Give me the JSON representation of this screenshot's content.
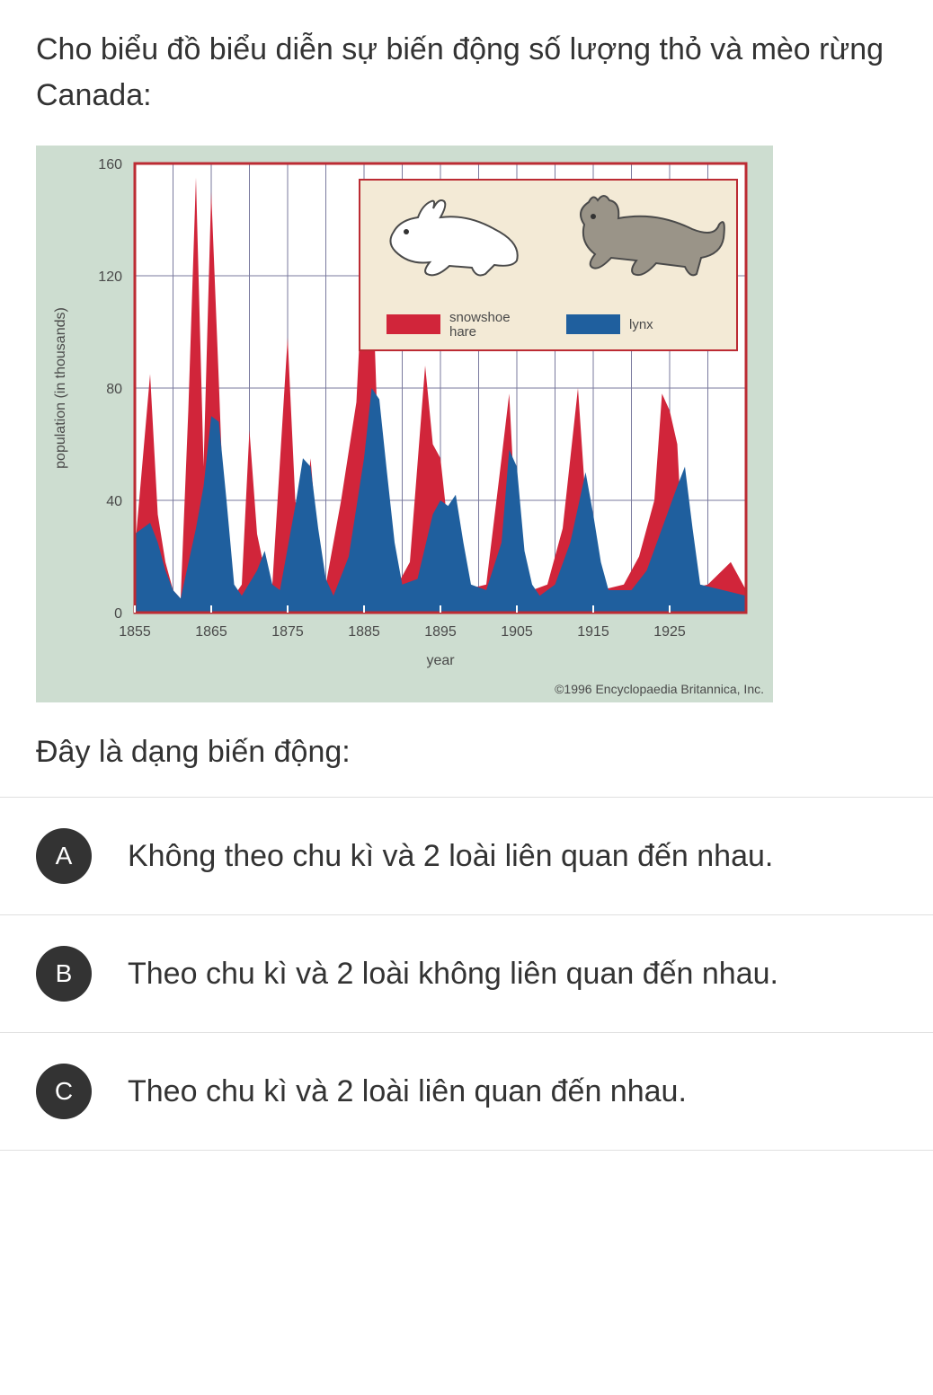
{
  "question": {
    "intro": "Cho biểu đồ biểu diễn sự biến động số lượng thỏ và mèo rừng Canada:",
    "prompt": "Đây là dạng biến động:"
  },
  "chart": {
    "type": "area",
    "background_color": "#cdddd0",
    "plot_background_color": "#ffffff",
    "plot_border_color": "#bc2b33",
    "plot_border_width": 3,
    "grid_color": "#7a7a9e",
    "grid_width": 1,
    "axis_label_color": "#4a4a4a",
    "axis_font_size": 16,
    "y_axis": {
      "label": "population (in thousands)",
      "label_fontsize": 16,
      "min": 0,
      "max": 160,
      "ticks": [
        0,
        40,
        80,
        120,
        160
      ]
    },
    "x_axis": {
      "label": "year",
      "label_fontsize": 16,
      "min": 1855,
      "max": 1935,
      "ticks": [
        1855,
        1865,
        1875,
        1885,
        1895,
        1905,
        1915,
        1925
      ]
    },
    "legend": {
      "box_fill": "#f3ead6",
      "box_stroke": "#bc2b33",
      "items": [
        {
          "label": "snowshoe hare",
          "color": "#d1253a",
          "animal": "hare"
        },
        {
          "label": "lynx",
          "color": "#1f5f9e",
          "animal": "lynx"
        }
      ]
    },
    "copyright": "©1996 Encyclopaedia Britannica, Inc.",
    "series": {
      "hare": {
        "color": "#d1253a",
        "points": [
          [
            1855,
            22
          ],
          [
            1857,
            85
          ],
          [
            1858,
            35
          ],
          [
            1859,
            18
          ],
          [
            1860,
            8
          ],
          [
            1861,
            5
          ],
          [
            1862,
            72
          ],
          [
            1863,
            155
          ],
          [
            1864,
            52
          ],
          [
            1865,
            150
          ],
          [
            1866,
            82
          ],
          [
            1867,
            10
          ],
          [
            1868,
            6
          ],
          [
            1869,
            10
          ],
          [
            1870,
            65
          ],
          [
            1871,
            28
          ],
          [
            1872,
            15
          ],
          [
            1873,
            10
          ],
          [
            1875,
            98
          ],
          [
            1876,
            40
          ],
          [
            1877,
            25
          ],
          [
            1878,
            55
          ],
          [
            1879,
            22
          ],
          [
            1880,
            10
          ],
          [
            1882,
            40
          ],
          [
            1884,
            75
          ],
          [
            1885,
            130
          ],
          [
            1886,
            128
          ],
          [
            1887,
            48
          ],
          [
            1888,
            14
          ],
          [
            1889,
            8
          ],
          [
            1891,
            18
          ],
          [
            1893,
            88
          ],
          [
            1894,
            60
          ],
          [
            1895,
            55
          ],
          [
            1896,
            30
          ],
          [
            1897,
            12
          ],
          [
            1898,
            8
          ],
          [
            1901,
            10
          ],
          [
            1903,
            55
          ],
          [
            1904,
            78
          ],
          [
            1905,
            25
          ],
          [
            1906,
            12
          ],
          [
            1907,
            8
          ],
          [
            1909,
            10
          ],
          [
            1911,
            30
          ],
          [
            1913,
            80
          ],
          [
            1914,
            40
          ],
          [
            1915,
            15
          ],
          [
            1916,
            8
          ],
          [
            1919,
            10
          ],
          [
            1921,
            20
          ],
          [
            1923,
            40
          ],
          [
            1924,
            78
          ],
          [
            1925,
            72
          ],
          [
            1926,
            60
          ],
          [
            1927,
            8
          ],
          [
            1930,
            10
          ],
          [
            1933,
            18
          ],
          [
            1935,
            8
          ]
        ]
      },
      "lynx": {
        "color": "#1f5f9e",
        "points": [
          [
            1855,
            28
          ],
          [
            1857,
            32
          ],
          [
            1858,
            25
          ],
          [
            1859,
            15
          ],
          [
            1860,
            8
          ],
          [
            1861,
            5
          ],
          [
            1863,
            30
          ],
          [
            1864,
            45
          ],
          [
            1865,
            70
          ],
          [
            1866,
            68
          ],
          [
            1867,
            40
          ],
          [
            1868,
            10
          ],
          [
            1869,
            6
          ],
          [
            1871,
            15
          ],
          [
            1872,
            22
          ],
          [
            1873,
            10
          ],
          [
            1874,
            8
          ],
          [
            1876,
            38
          ],
          [
            1877,
            55
          ],
          [
            1878,
            52
          ],
          [
            1879,
            30
          ],
          [
            1880,
            12
          ],
          [
            1881,
            6
          ],
          [
            1883,
            20
          ],
          [
            1885,
            55
          ],
          [
            1886,
            80
          ],
          [
            1887,
            76
          ],
          [
            1888,
            50
          ],
          [
            1889,
            25
          ],
          [
            1890,
            10
          ],
          [
            1892,
            12
          ],
          [
            1894,
            35
          ],
          [
            1895,
            40
          ],
          [
            1896,
            38
          ],
          [
            1897,
            42
          ],
          [
            1898,
            25
          ],
          [
            1899,
            10
          ],
          [
            1901,
            8
          ],
          [
            1903,
            25
          ],
          [
            1904,
            58
          ],
          [
            1905,
            52
          ],
          [
            1906,
            22
          ],
          [
            1907,
            10
          ],
          [
            1908,
            6
          ],
          [
            1910,
            10
          ],
          [
            1912,
            25
          ],
          [
            1914,
            50
          ],
          [
            1915,
            35
          ],
          [
            1916,
            18
          ],
          [
            1917,
            8
          ],
          [
            1920,
            8
          ],
          [
            1922,
            15
          ],
          [
            1924,
            30
          ],
          [
            1926,
            45
          ],
          [
            1927,
            52
          ],
          [
            1928,
            30
          ],
          [
            1929,
            10
          ],
          [
            1932,
            8
          ],
          [
            1935,
            6
          ]
        ]
      }
    }
  },
  "options": [
    {
      "letter": "A",
      "text": "Không theo chu kì và 2 loài liên quan đến nhau."
    },
    {
      "letter": "B",
      "text": "Theo chu kì và 2 loài không liên quan đến nhau."
    },
    {
      "letter": "C",
      "text": "Theo chu kì và 2 loài liên quan đến nhau."
    }
  ]
}
